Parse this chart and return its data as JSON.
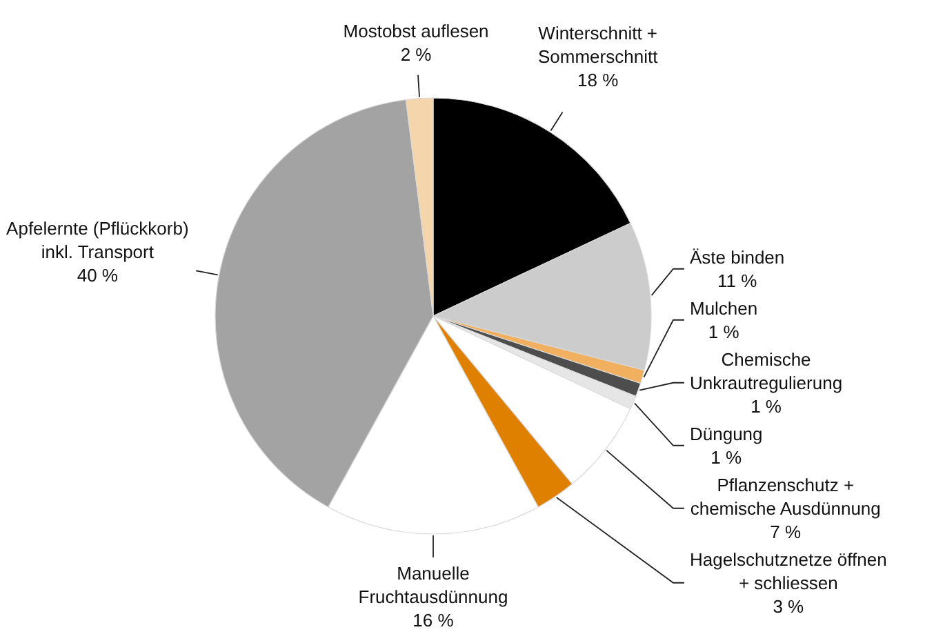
{
  "chart_data": {
    "type": "pie",
    "categories": [
      "Winterschnitt +\nSommerschnitt",
      "Äste binden",
      "Mulchen",
      "Chemische\nUnkrautregulierung",
      "Düngung",
      "Pflanzenschutz +\nchemische Ausdünnung",
      "Hagelschutznetze öffnen\n+ schliessen",
      "Manuelle\nFruchtausdünnung",
      "Apfelernte (Pflückkorb)\ninkl. Transport",
      "Mostobst auflesen"
    ],
    "values": [
      18,
      11,
      1,
      1,
      1,
      7,
      3,
      16,
      40,
      2
    ],
    "colors": [
      "#000000",
      "#cccccc",
      "#f0b060",
      "#4d4d4d",
      "#e6e6e6",
      "#ffffff",
      "#e08000",
      "#ffffff",
      "#a3a3a3",
      "#f5d6ac"
    ],
    "value_labels": [
      "18 %",
      "11 %",
      "1 %",
      "1 %",
      "1 %",
      "7 %",
      "3 %",
      "16 %",
      "40 %",
      "2 %"
    ]
  }
}
